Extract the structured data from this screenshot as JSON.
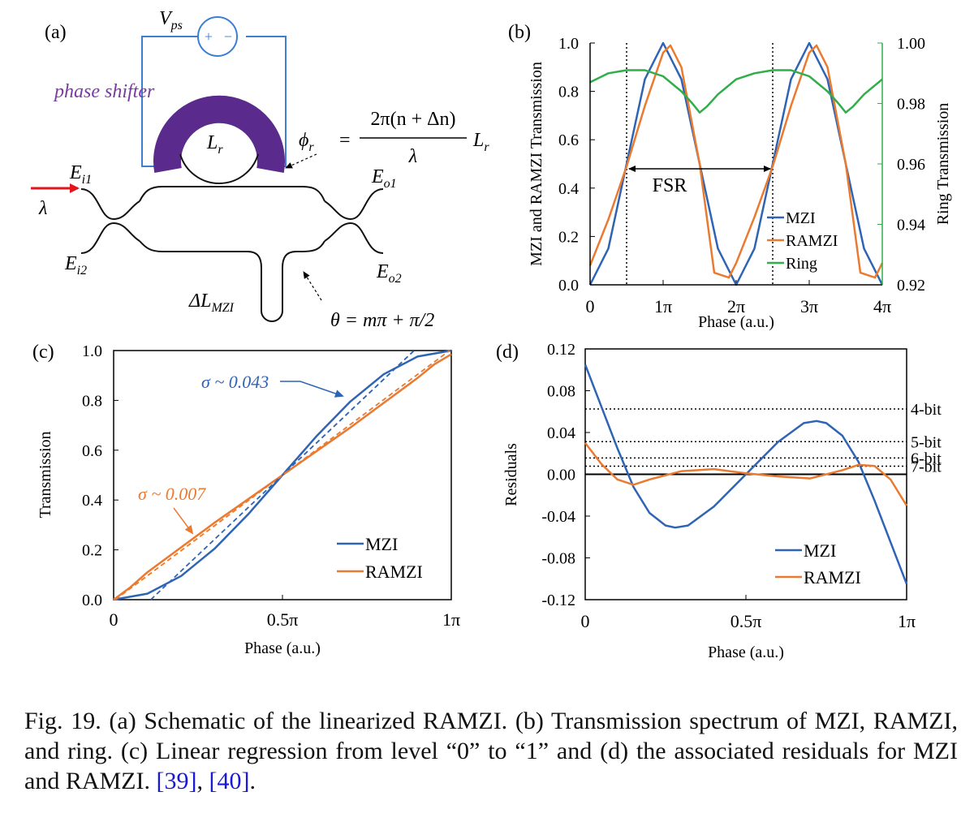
{
  "colors": {
    "mzi": "#2f64b4",
    "ramzi": "#ea7a30",
    "ring": "#2fae4a",
    "phase_shifter": "#5a2a8c",
    "laser": "#e3141c",
    "circuit": "#3b7fd1",
    "ref": "#1a1ad6"
  },
  "panel_a": {
    "label": "(a)",
    "vps_label": "V",
    "vps_sub": "ps",
    "plus": "+",
    "minus": "−",
    "phase_shifter": "phase shifter",
    "ring_label": "L",
    "ring_sub": "r",
    "phi_lhs": "ϕ",
    "phi_sub": "r",
    "phi_num": "2π(n + Δn)",
    "phi_den": "λ",
    "phi_tail": "L",
    "phi_tail_sub": "r",
    "ei1": "E",
    "ei1_sub": "i1",
    "ei2": "E",
    "ei2_sub": "i2",
    "eo1": "E",
    "eo1_sub": "o1",
    "eo2": "E",
    "eo2_sub": "o2",
    "lambda": "λ",
    "dl": "ΔL",
    "dl_sub": "MZI",
    "theta": "θ = mπ + π/2"
  },
  "chart_data": [
    {
      "panel": "(b)",
      "type": "line",
      "xlabel": "Phase (a.u.)",
      "ylabel": "MZI and RAMZI Transmission",
      "y2label": "Ring Transmission",
      "xticks": [
        "0",
        "1π",
        "2π",
        "3π",
        "4π"
      ],
      "yticks": [
        "0.0",
        "0.2",
        "0.4",
        "0.6",
        "0.8",
        "1.0"
      ],
      "y2ticks": [
        "0.92",
        "0.94",
        "0.96",
        "0.98",
        "1.00"
      ],
      "xlim": [
        0,
        4
      ],
      "ylim": [
        0,
        1
      ],
      "y2lim": [
        0.92,
        1.0
      ],
      "annotation": "FSR",
      "fsr_markers": [
        0.5,
        2.5
      ],
      "legend": [
        "MZI",
        "RAMZI",
        "Ring"
      ],
      "legend_position": "bottom-right",
      "series": [
        {
          "name": "MZI",
          "axis": "left",
          "x": [
            0,
            0.25,
            0.5,
            0.75,
            1.0,
            1.25,
            1.5,
            1.75,
            2.0,
            2.25,
            2.5,
            2.75,
            3.0,
            3.25,
            3.5,
            3.75,
            4.0
          ],
          "values": [
            0,
            0.15,
            0.5,
            0.85,
            1.0,
            0.85,
            0.5,
            0.15,
            0,
            0.15,
            0.5,
            0.85,
            1.0,
            0.85,
            0.5,
            0.15,
            0
          ]
        },
        {
          "name": "RAMZI",
          "axis": "left",
          "x": [
            0,
            0.25,
            0.5,
            0.75,
            1.0,
            1.1,
            1.25,
            1.5,
            1.7,
            1.9,
            2.0,
            2.25,
            2.5,
            2.75,
            3.0,
            3.1,
            3.25,
            3.5,
            3.7,
            3.9,
            4.0
          ],
          "values": [
            0.08,
            0.27,
            0.49,
            0.74,
            0.96,
            0.99,
            0.9,
            0.5,
            0.05,
            0.03,
            0.09,
            0.28,
            0.49,
            0.74,
            0.96,
            0.99,
            0.9,
            0.5,
            0.05,
            0.03,
            0.09
          ]
        },
        {
          "name": "Ring",
          "axis": "right",
          "x": [
            0,
            0.25,
            0.5,
            0.75,
            1.0,
            1.25,
            1.4,
            1.5,
            1.6,
            1.75,
            2.0,
            2.25,
            2.5,
            2.75,
            3.0,
            3.25,
            3.4,
            3.5,
            3.6,
            3.75,
            4.0
          ],
          "values": [
            0.987,
            0.99,
            0.991,
            0.991,
            0.989,
            0.984,
            0.98,
            0.977,
            0.979,
            0.983,
            0.988,
            0.99,
            0.991,
            0.991,
            0.989,
            0.984,
            0.98,
            0.977,
            0.979,
            0.983,
            0.988
          ]
        }
      ]
    },
    {
      "panel": "(c)",
      "type": "line",
      "xlabel": "Phase (a.u.)",
      "ylabel": "Transmission",
      "xticks": [
        "0",
        "0.5π",
        "1π"
      ],
      "yticks": [
        "0.0",
        "0.2",
        "0.4",
        "0.6",
        "0.8",
        "1.0"
      ],
      "xlim": [
        0,
        1
      ],
      "ylim": [
        0,
        1
      ],
      "annotations": [
        {
          "text": "σ ~ 0.043",
          "series": "MZI"
        },
        {
          "text": "σ ~ 0.007",
          "series": "RAMZI"
        }
      ],
      "legend": [
        "MZI",
        "RAMZI"
      ],
      "legend_position": "bottom-right",
      "series": [
        {
          "name": "MZI",
          "x": [
            0,
            0.1,
            0.2,
            0.3,
            0.4,
            0.5,
            0.6,
            0.7,
            0.8,
            0.9,
            1.0
          ],
          "values": [
            0,
            0.024,
            0.095,
            0.206,
            0.345,
            0.5,
            0.655,
            0.794,
            0.905,
            0.976,
            1.0
          ]
        },
        {
          "name": "RAMZI",
          "x": [
            0,
            0.05,
            0.1,
            0.2,
            0.3,
            0.4,
            0.5,
            0.6,
            0.7,
            0.8,
            0.9,
            0.95,
            1.0
          ],
          "values": [
            0,
            0.05,
            0.11,
            0.21,
            0.31,
            0.405,
            0.5,
            0.595,
            0.69,
            0.79,
            0.89,
            0.945,
            0.985
          ]
        },
        {
          "name": "MZI fit",
          "x": [
            0.11,
            0.89
          ],
          "values": [
            0,
            1
          ],
          "style": "dashed"
        },
        {
          "name": "RAMZI fit",
          "x": [
            0.005,
            0.995
          ],
          "values": [
            0,
            1
          ],
          "style": "dashed"
        }
      ]
    },
    {
      "panel": "(d)",
      "type": "line",
      "xlabel": "Phase (a.u.)",
      "ylabel": "Residuals",
      "xticks": [
        "0",
        "0.5π",
        "1π"
      ],
      "yticks": [
        "0.12",
        "0.08",
        "0.04",
        "0.00",
        "-0.04",
        "-0.08",
        "-0.12"
      ],
      "xlim": [
        0,
        1
      ],
      "ylim": [
        -0.12,
        0.12
      ],
      "reference_lines": [
        {
          "label": "4-bit",
          "y": 0.0625
        },
        {
          "label": "5-bit",
          "y": 0.03125
        },
        {
          "label": "6-bit",
          "y": 0.015625
        },
        {
          "label": "7-bit",
          "y": 0.0078125
        }
      ],
      "legend": [
        "MZI",
        "RAMZI"
      ],
      "legend_position": "bottom-right",
      "series": [
        {
          "name": "MZI",
          "x": [
            0,
            0.05,
            0.1,
            0.15,
            0.2,
            0.25,
            0.28,
            0.32,
            0.4,
            0.5,
            0.6,
            0.68,
            0.72,
            0.75,
            0.8,
            0.85,
            0.9,
            0.95,
            1.0
          ],
          "values": [
            0.105,
            0.065,
            0.025,
            -0.012,
            -0.037,
            -0.049,
            -0.051,
            -0.049,
            -0.031,
            0,
            0.031,
            0.049,
            0.051,
            0.049,
            0.037,
            0.012,
            -0.025,
            -0.065,
            -0.105
          ]
        },
        {
          "name": "RAMZI",
          "x": [
            0,
            0.05,
            0.1,
            0.15,
            0.2,
            0.3,
            0.4,
            0.5,
            0.6,
            0.7,
            0.8,
            0.85,
            0.9,
            0.95,
            1.0
          ],
          "values": [
            0.03,
            0.01,
            -0.005,
            -0.01,
            -0.005,
            0.003,
            0.005,
            0.001,
            -0.002,
            -0.004,
            0.004,
            0.009,
            0.008,
            -0.005,
            -0.03
          ]
        }
      ]
    }
  ],
  "caption": {
    "text": "Fig. 19. (a) Schematic of the linearized RAMZI. (b) Transmission spectrum of MZI, RAMZI, and ring. (c) Linear regression from level “0” to “1” and (d) the associated residuals for MZI and RAMZI.",
    "ref1": "[39]",
    "sep": ", ",
    "ref2": "[40]",
    "end": "."
  }
}
